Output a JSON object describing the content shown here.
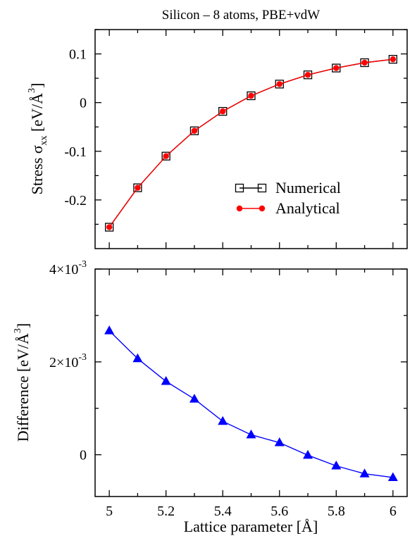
{
  "chart_data": [
    {
      "type": "line",
      "title": "Silicon – 8 atoms, PBE+vdW",
      "xlabel": "",
      "ylabel": "Stress σxx [eV/Å³]",
      "ylabel_parts": {
        "main": "Stress σ",
        "sub": "xx",
        "unit_open": " [eV/Å",
        "sup": "3",
        "unit_close": "]"
      },
      "xlim": [
        4.95,
        6.05
      ],
      "ylim": [
        -0.3,
        0.15
      ],
      "x_ticks": [
        5,
        5.2,
        5.4,
        5.6,
        5.8,
        6
      ],
      "y_ticks": [
        -0.2,
        -0.1,
        0,
        0.1
      ],
      "y_tick_labels": [
        "-0.2",
        "-0.1",
        "0",
        "0.1"
      ],
      "legend_position": "lower-right",
      "grid": false,
      "x": [
        5.0,
        5.1,
        5.2,
        5.3,
        5.4,
        5.5,
        5.6,
        5.7,
        5.8,
        5.9,
        6.0
      ],
      "series": [
        {
          "name": "Numerical",
          "marker": "square-open",
          "color": "#000000",
          "values": [
            -0.256,
            -0.175,
            -0.11,
            -0.058,
            -0.018,
            0.014,
            0.038,
            0.057,
            0.071,
            0.082,
            0.089
          ]
        },
        {
          "name": "Analytical",
          "marker": "circle-filled",
          "color": "#ff0000",
          "values": [
            -0.256,
            -0.175,
            -0.11,
            -0.058,
            -0.018,
            0.014,
            0.038,
            0.057,
            0.071,
            0.082,
            0.089
          ]
        }
      ]
    },
    {
      "type": "line",
      "xlabel": "Lattice parameter [Å]",
      "ylabel": "Difference [eV/Å³]",
      "ylabel_parts": {
        "main": "Difference [eV/Å",
        "sup": "3",
        "close": "]"
      },
      "xlim": [
        4.95,
        6.05
      ],
      "ylim": [
        -0.0009,
        0.004
      ],
      "x_ticks": [
        5,
        5.2,
        5.4,
        5.6,
        5.8,
        6
      ],
      "x_tick_labels": [
        "5",
        "5.2",
        "5.4",
        "5.6",
        "5.8",
        "6"
      ],
      "y_ticks": [
        0,
        0.002,
        0.004
      ],
      "y_tick_labels": [
        {
          "base": "0",
          "exp": ""
        },
        {
          "base": "2×10",
          "exp": "-3"
        },
        {
          "base": "4×10",
          "exp": "-3"
        }
      ],
      "grid": false,
      "x": [
        5.0,
        5.1,
        5.2,
        5.3,
        5.4,
        5.5,
        5.6,
        5.7,
        5.8,
        5.9,
        6.0
      ],
      "series": [
        {
          "name": "",
          "marker": "triangle-filled",
          "color": "#0000ff",
          "values": [
            0.00267,
            0.00207,
            0.00158,
            0.0012,
            0.00072,
            0.00043,
            0.00026,
            -1e-05,
            -0.00024,
            -0.00041,
            -0.00049
          ]
        }
      ]
    }
  ]
}
